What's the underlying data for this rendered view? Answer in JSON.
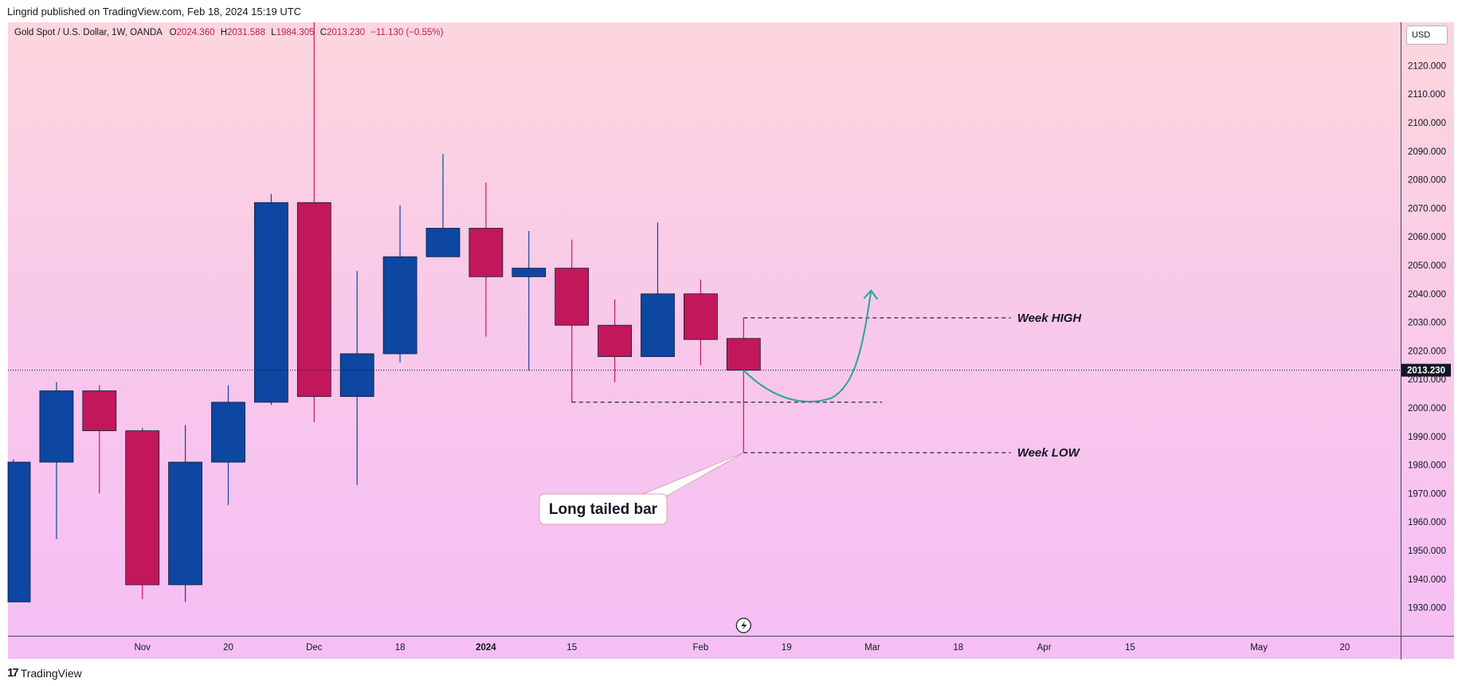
{
  "header": {
    "publisher": "Lingrid published on TradingView.com, Feb 18, 2024 15:19 UTC"
  },
  "legend": {
    "symbol": "Gold Spot / U.S. Dollar, 1W, OANDA",
    "open_label": "O",
    "open": "2024.360",
    "high_label": "H",
    "high": "2031.588",
    "low_label": "L",
    "low": "1984.305",
    "close_label": "C",
    "close": "2013.230",
    "change": "−11.130 (−0.55%)"
  },
  "price_axis": {
    "currency": "USD",
    "last_price": "2013.230"
  },
  "footer": {
    "logo_text": "TradingView"
  },
  "colors": {
    "up": "#0d47a1",
    "down": "#c2185b",
    "arrow": "#26a69a"
  },
  "chart_data": {
    "type": "candlestick",
    "timeframe": "1W",
    "ylim": [
      1920,
      2130
    ],
    "price_ticks": [
      1930,
      1940,
      1950,
      1960,
      1970,
      1980,
      1990,
      2000,
      2010,
      2020,
      2030,
      2040,
      2050,
      2060,
      2070,
      2080,
      2090,
      2100,
      2110,
      2120
    ],
    "price_tick_labels": [
      "1930.000",
      "1940.000",
      "1950.000",
      "1960.000",
      "1970.000",
      "1980.000",
      "1990.000",
      "2000.000",
      "2010.000",
      "2020.000",
      "2030.000",
      "2040.000",
      "2050.000",
      "2060.000",
      "2070.000",
      "2080.000",
      "2090.000",
      "2100.000",
      "2110.000",
      "2120.000"
    ],
    "time_ticks": [
      {
        "label": "Nov",
        "week": 3
      },
      {
        "label": "20",
        "week": 5
      },
      {
        "label": "Dec",
        "week": 7
      },
      {
        "label": "18",
        "week": 9
      },
      {
        "label": "2024",
        "week": 11
      },
      {
        "label": "15",
        "week": 13
      },
      {
        "label": "Feb",
        "week": 16
      },
      {
        "label": "19",
        "week": 18
      },
      {
        "label": "Mar",
        "week": 20
      },
      {
        "label": "18",
        "week": 22
      },
      {
        "label": "Apr",
        "week": 24
      },
      {
        "label": "15",
        "week": 26
      },
      {
        "label": "May",
        "week": 29
      },
      {
        "label": "20",
        "week": 31
      }
    ],
    "candles": [
      {
        "w": 0,
        "o": 1932,
        "h": 1982,
        "l": 1932,
        "c": 1981
      },
      {
        "w": 1,
        "o": 1981,
        "h": 2009,
        "l": 1954,
        "c": 2006
      },
      {
        "w": 2,
        "o": 2006,
        "h": 2008,
        "l": 1970,
        "c": 1992
      },
      {
        "w": 3,
        "o": 1992,
        "h": 1993,
        "l": 1933,
        "c": 1938
      },
      {
        "w": 4,
        "o": 1938,
        "h": 1994,
        "l": 1932,
        "c": 1981
      },
      {
        "w": 5,
        "o": 1981,
        "h": 2008,
        "l": 1966,
        "c": 2002
      },
      {
        "w": 6,
        "o": 2002,
        "h": 2075,
        "l": 2001,
        "c": 2072
      },
      {
        "w": 7,
        "o": 2072,
        "h": 2146,
        "l": 1995,
        "c": 2004
      },
      {
        "w": 8,
        "o": 2004,
        "h": 2048,
        "l": 1973,
        "c": 2019
      },
      {
        "w": 9,
        "o": 2019,
        "h": 2071,
        "l": 2016,
        "c": 2053
      },
      {
        "w": 10,
        "o": 2053,
        "h": 2089,
        "l": 2053,
        "c": 2063
      },
      {
        "w": 11,
        "o": 2063,
        "h": 2079,
        "l": 2025,
        "c": 2046
      },
      {
        "w": 12,
        "o": 2046,
        "h": 2062,
        "l": 2013,
        "c": 2049
      },
      {
        "w": 13,
        "o": 2049,
        "h": 2059,
        "l": 2002,
        "c": 2029
      },
      {
        "w": 14,
        "o": 2029,
        "h": 2038,
        "l": 2009,
        "c": 2018
      },
      {
        "w": 15,
        "o": 2018,
        "h": 2065,
        "l": 2018,
        "c": 2040
      },
      {
        "w": 16,
        "o": 2040,
        "h": 2045,
        "l": 2015,
        "c": 2024
      },
      {
        "w": 17,
        "o": 2024.36,
        "h": 2031.588,
        "l": 1984.305,
        "c": 2013.23
      }
    ],
    "lines": {
      "week_high": {
        "price": 2031.588,
        "from_week": 17,
        "to_week": 23,
        "label": "Week HIGH"
      },
      "week_low": {
        "price": 1984.305,
        "from_week": 17,
        "to_week": 23,
        "label": "Week LOW"
      },
      "support": {
        "price": 2002,
        "from_week": 13,
        "to_week": 20
      }
    },
    "annotations": {
      "callout": "Long tailed bar"
    }
  }
}
